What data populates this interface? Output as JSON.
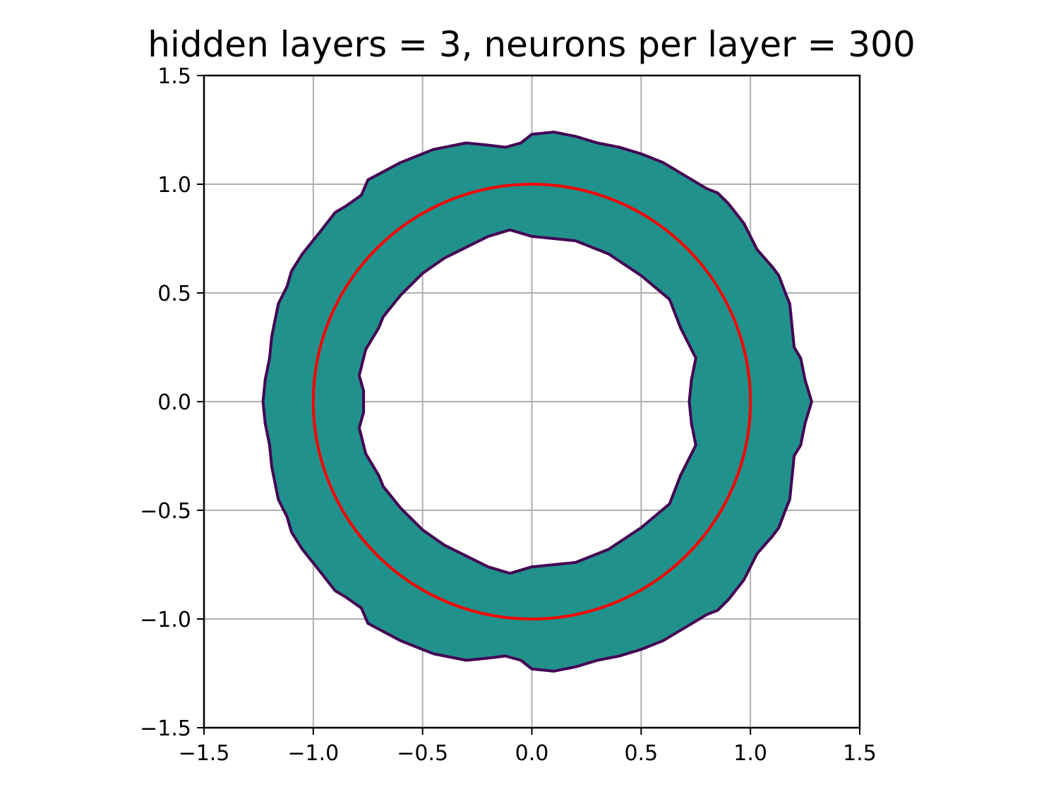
{
  "chart_data": {
    "type": "area",
    "title": "hidden layers = 3, neurons per layer = 300",
    "xlabel": "",
    "ylabel": "",
    "xlim": [
      -1.5,
      1.5
    ],
    "ylim": [
      -1.5,
      1.5
    ],
    "grid": true,
    "x_ticks": [
      -1.5,
      -1.0,
      -0.5,
      0.0,
      0.5,
      1.0,
      1.5
    ],
    "y_ticks": [
      -1.5,
      -1.0,
      -0.5,
      0.0,
      0.5,
      1.0,
      1.5
    ],
    "x_tick_labels": [
      "−1.5",
      "−1.0",
      "−0.5",
      "0.0",
      "0.5",
      "1.0",
      "1.5"
    ],
    "y_tick_labels": [
      "−1.5",
      "−1.0",
      "−0.5",
      "0.0",
      "0.5",
      "1.0",
      "1.5"
    ],
    "colors": {
      "band_fill": "#21918c",
      "band_edge": "#440154",
      "reference_circle": "#ff0000",
      "grid": "#b0b0b0"
    },
    "band": {
      "outer_boundary": [
        [
          1.28,
          0.0
        ],
        [
          1.25,
          0.1
        ],
        [
          1.23,
          0.2
        ],
        [
          1.2,
          0.25
        ],
        [
          1.19,
          0.35
        ],
        [
          1.18,
          0.45
        ],
        [
          1.16,
          0.5
        ],
        [
          1.13,
          0.58
        ],
        [
          1.1,
          0.62
        ],
        [
          1.03,
          0.7
        ],
        [
          1.0,
          0.76
        ],
        [
          0.97,
          0.82
        ],
        [
          0.9,
          0.91
        ],
        [
          0.85,
          0.96
        ],
        [
          0.8,
          0.98
        ],
        [
          0.7,
          1.04
        ],
        [
          0.6,
          1.1
        ],
        [
          0.5,
          1.14
        ],
        [
          0.4,
          1.17
        ],
        [
          0.3,
          1.19
        ],
        [
          0.2,
          1.22
        ],
        [
          0.1,
          1.24
        ],
        [
          0.0,
          1.23
        ],
        [
          -0.05,
          1.19
        ],
        [
          -0.12,
          1.17
        ],
        [
          -0.2,
          1.18
        ],
        [
          -0.3,
          1.19
        ],
        [
          -0.45,
          1.16
        ],
        [
          -0.55,
          1.12
        ],
        [
          -0.6,
          1.1
        ],
        [
          -0.75,
          1.02
        ],
        [
          -0.78,
          0.95
        ],
        [
          -0.85,
          0.9
        ],
        [
          -0.9,
          0.87
        ],
        [
          -0.97,
          0.78
        ],
        [
          -1.05,
          0.68
        ],
        [
          -1.1,
          0.6
        ],
        [
          -1.12,
          0.53
        ],
        [
          -1.16,
          0.45
        ],
        [
          -1.18,
          0.35
        ],
        [
          -1.19,
          0.3
        ],
        [
          -1.2,
          0.2
        ],
        [
          -1.22,
          0.1
        ],
        [
          -1.23,
          0.0
        ]
      ],
      "inner_boundary": [
        [
          0.72,
          0.0
        ],
        [
          0.73,
          0.1
        ],
        [
          0.75,
          0.2
        ],
        [
          0.68,
          0.34
        ],
        [
          0.63,
          0.47
        ],
        [
          0.5,
          0.58
        ],
        [
          0.35,
          0.68
        ],
        [
          0.2,
          0.74
        ],
        [
          0.0,
          0.76
        ],
        [
          -0.1,
          0.79
        ],
        [
          -0.2,
          0.76
        ],
        [
          -0.3,
          0.71
        ],
        [
          -0.4,
          0.66
        ],
        [
          -0.5,
          0.59
        ],
        [
          -0.6,
          0.49
        ],
        [
          -0.68,
          0.39
        ],
        [
          -0.7,
          0.34
        ],
        [
          -0.76,
          0.24
        ],
        [
          -0.79,
          0.12
        ],
        [
          -0.77,
          0.05
        ],
        [
          -0.77,
          0.0
        ]
      ],
      "symmetry": "mirrored about the x-axis"
    },
    "reference_circle": {
      "center": [
        0.0,
        0.0
      ],
      "radius": 1.0
    }
  }
}
